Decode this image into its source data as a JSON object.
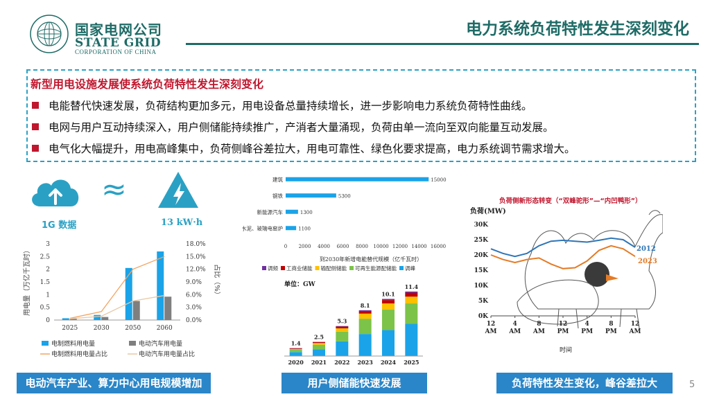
{
  "header": {
    "logo_cn": "国家电网公司",
    "logo_en": "STATE GRID",
    "logo_sub": "CORPORATION OF CHINA",
    "title": "电力系统负荷特性发生深刻变化"
  },
  "callout": {
    "title": "新型用电设施发展使系统负荷特性发生深刻变化",
    "bullets": [
      "电能替代快速发展，负荷结构更加多元，用电设备总量持续增长，进一步影响电力系统负荷特性曲线。",
      "电网与用户互动持续深入，用户侧储能持续推广，产消者大量涌现，负荷由单一流向至双向能量互动发展。",
      "电气化大幅提升，用电高峰集中，负荷侧峰谷差拉大，用电可靠性、绿色化要求提高，电力系统调节需求增大。"
    ]
  },
  "equivalence": {
    "left_label": "1G 数据",
    "approx": "≈",
    "right_label": "13 kW·h",
    "cloud_icon": "cloud-upload-icon",
    "power_icon": "lightning-warning-icon"
  },
  "colors": {
    "brand": "#1e6b66",
    "accent_red": "#c0172e",
    "banner_blue": "#2a86c8",
    "bar_blue": "#1aa3e8",
    "bar_gray": "#7f7f7f",
    "line_orange": "#f4a460",
    "line_beige": "#e8c9a6"
  },
  "chart_data": [
    {
      "type": "bar",
      "categories": [
        "2025",
        "2030",
        "2050",
        "2060"
      ],
      "series": [
        {
          "name": "电制燃料用电量",
          "type": "bar",
          "axis": "left",
          "values": [
            0.07,
            0.2,
            2.05,
            2.7
          ]
        },
        {
          "name": "电动汽车用电量",
          "type": "bar",
          "axis": "left",
          "values": [
            0.05,
            0.12,
            0.75,
            0.92
          ]
        },
        {
          "name": "电制燃料用电量占比",
          "type": "line",
          "axis": "right",
          "values": [
            0.4,
            2.0,
            12.0,
            15.0
          ]
        },
        {
          "name": "电动汽车用电量占比",
          "type": "line",
          "axis": "right",
          "values": [
            0.3,
            0.9,
            4.5,
            5.8
          ]
        }
      ],
      "ylabel": "用电量（万亿千瓦时）",
      "y2label": "占比（%）",
      "ylim": [
        0,
        3
      ],
      "y2lim": [
        0,
        18
      ],
      "yticks": [
        "0",
        "0.5",
        "1",
        "1.5",
        "2",
        "2.5",
        "3"
      ],
      "y2ticks": [
        "0.0%",
        "3.0%",
        "6.0%",
        "9.0%",
        "12.0%",
        "15.0%",
        "18.0%"
      ],
      "legend": "bottom"
    },
    {
      "type": "bar",
      "orientation": "horizontal",
      "categories": [
        "建筑",
        "钢铁",
        "新能源汽车",
        "水泥、玻璃电窑炉"
      ],
      "values": [
        15000,
        5300,
        1300,
        1100
      ],
      "value_labels": [
        "15000",
        "5300",
        "1300",
        "1100"
      ],
      "xlabel": "到2030年新增电能替代规模（亿千瓦时）",
      "xticks": [
        "0",
        "2000",
        "4000",
        "6000",
        "8000",
        "10000",
        "12000",
        "14000",
        "16000"
      ],
      "xlim": [
        0,
        16000
      ]
    },
    {
      "type": "bar",
      "stacked": true,
      "categories": [
        "2020",
        "2021",
        "2022",
        "2023",
        "2024",
        "2025"
      ],
      "totals": [
        1.4,
        2.5,
        5.3,
        8.1,
        10.1,
        11.4
      ],
      "total_labels": [
        "1.4",
        "2.5",
        "5.3",
        "8.1",
        "10.1",
        "11.4"
      ],
      "unit": "单位：GW",
      "series": [
        {
          "name": "调频",
          "color": "#7030a0",
          "values": [
            0.05,
            0.05,
            0.1,
            0.15,
            0.2,
            0.2
          ]
        },
        {
          "name": "工商业储能",
          "color": "#c00000",
          "values": [
            0.1,
            0.15,
            0.3,
            0.45,
            0.6,
            0.7
          ]
        },
        {
          "name": "输配侧储能",
          "color": "#ffc000",
          "values": [
            0.15,
            0.3,
            0.6,
            0.9,
            1.1,
            1.2
          ]
        },
        {
          "name": "可再生能源配储能",
          "color": "#7cc349",
          "values": [
            0.4,
            0.8,
            1.7,
            2.7,
            3.6,
            3.6
          ]
        },
        {
          "name": "调峰",
          "color": "#1aa3e8",
          "values": [
            0.7,
            1.2,
            2.6,
            3.9,
            4.6,
            5.7
          ]
        }
      ],
      "legend": "top"
    },
    {
      "type": "line",
      "title": "负荷侧新形态转变（“双峰驼形”—“内凹鸭形”）",
      "ylabel": "负荷(MW)",
      "xlabel": "时间",
      "yticks": [
        "0K",
        "5K",
        "10K",
        "15K",
        "20K",
        "25K",
        "30K"
      ],
      "ylim": [
        0,
        30000
      ],
      "xticks": [
        "12 AM",
        "4 AM",
        "8 AM",
        "12 PM",
        "4 PM",
        "8 PM",
        "12 AM"
      ],
      "series": [
        {
          "name": "2012",
          "color": "#2e75b6",
          "x": [
            "12 AM",
            "2 AM",
            "4 AM",
            "6 AM",
            "8 AM",
            "10 AM",
            "12 PM",
            "2 PM",
            "4 PM",
            "6 PM",
            "8 PM",
            "10 PM",
            "12 AM"
          ],
          "values": [
            22000,
            20500,
            19500,
            20500,
            23000,
            24500,
            24800,
            24500,
            24200,
            24800,
            25500,
            25000,
            22500
          ]
        },
        {
          "name": "2023",
          "color": "#e47b26",
          "x": [
            "12 AM",
            "2 AM",
            "4 AM",
            "6 AM",
            "8 AM",
            "10 AM",
            "12 PM",
            "2 PM",
            "4 PM",
            "6 PM",
            "8 PM",
            "10 PM",
            "12 AM"
          ],
          "values": [
            20000,
            18500,
            17500,
            18500,
            19000,
            17000,
            15500,
            15800,
            18000,
            21500,
            23000,
            22000,
            19500
          ]
        }
      ]
    }
  ],
  "banners": [
    "电动汽车产业、算力中心用电规模增加",
    "用户侧储能快速发展",
    "负荷特性发生变化，峰谷差拉大"
  ],
  "page_number": "5"
}
